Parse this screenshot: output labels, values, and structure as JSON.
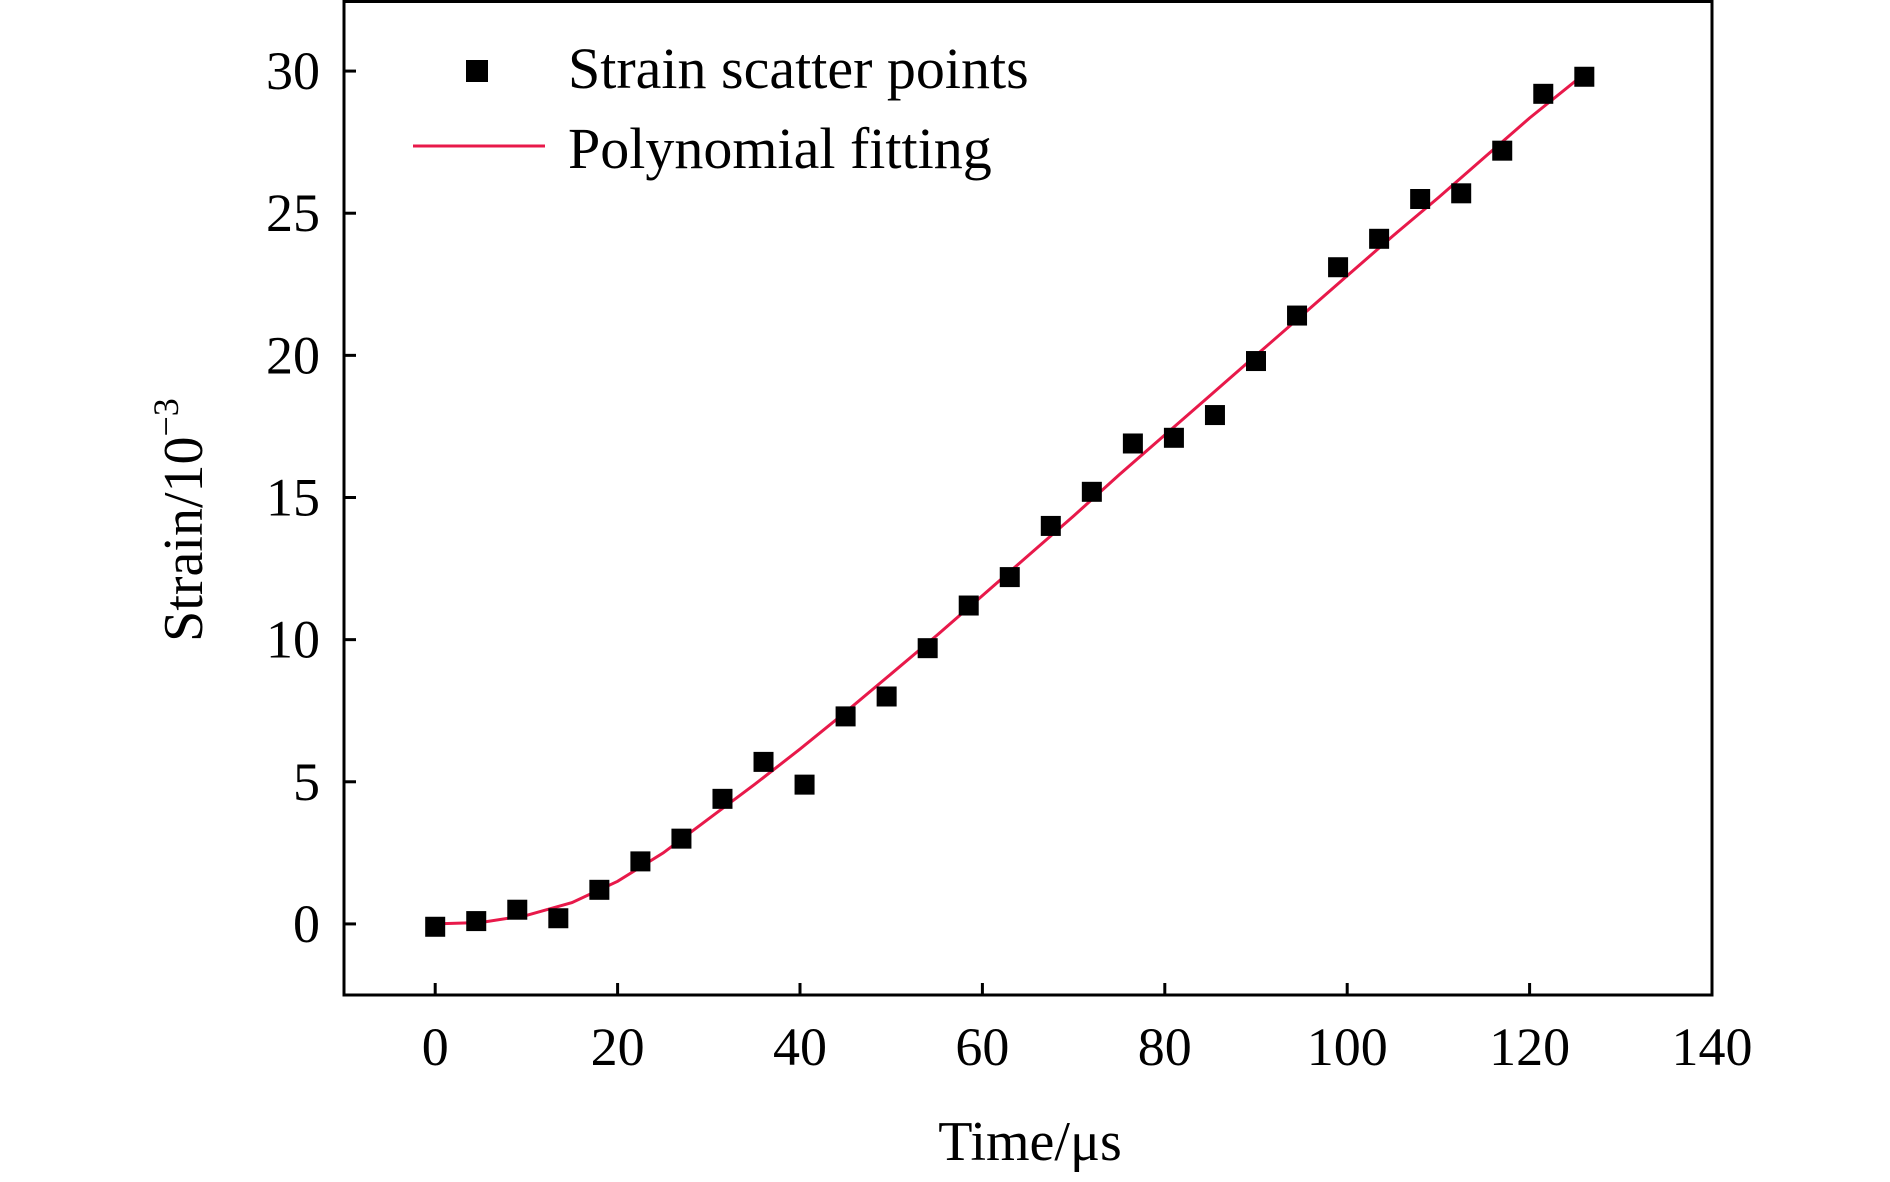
{
  "chart_data": {
    "type": "scatter",
    "title": "",
    "xlabel": "Time/μs",
    "ylabel_base": "Strain/10",
    "ylabel_exp": "−3",
    "xlim": [
      -10,
      140
    ],
    "ylim": [
      -2.5,
      32.5
    ],
    "xticks": [
      0,
      20,
      40,
      60,
      80,
      100,
      120,
      140
    ],
    "yticks": [
      0,
      5,
      10,
      15,
      20,
      25,
      30
    ],
    "grid": false,
    "legend_position": "top-left",
    "series": [
      {
        "name": "Strain scatter points",
        "kind": "scatter",
        "marker": "square",
        "color": "#000000",
        "x": [
          0,
          4.5,
          9,
          13.5,
          18,
          22.5,
          27,
          31.5,
          36,
          40.5,
          45,
          49.5,
          54,
          58.5,
          63,
          67.5,
          72,
          76.5,
          81,
          85.5,
          90,
          94.5,
          99,
          103.5,
          108,
          112.5,
          117,
          121.5,
          126
        ],
        "y": [
          -0.1,
          0.1,
          0.5,
          0.2,
          1.2,
          2.2,
          3.0,
          4.4,
          5.7,
          4.9,
          7.3,
          8.0,
          9.7,
          11.2,
          12.2,
          14.0,
          15.2,
          16.9,
          17.1,
          17.9,
          19.8,
          21.4,
          23.1,
          24.1,
          25.5,
          25.7,
          27.2,
          29.2,
          29.8
        ]
      },
      {
        "name": "Polynomial fitting",
        "kind": "line",
        "color": "#e8194a",
        "x": [
          0,
          5,
          10,
          15,
          20,
          25,
          30,
          35,
          40,
          45,
          50,
          55,
          60,
          65,
          70,
          75,
          80,
          85,
          90,
          95,
          100,
          105,
          110,
          115,
          120,
          126
        ],
        "y": [
          0,
          0.05,
          0.3,
          0.75,
          1.5,
          2.5,
          3.7,
          4.9,
          6.15,
          7.45,
          8.8,
          10.15,
          11.55,
          12.95,
          14.35,
          15.8,
          17.2,
          18.6,
          20.0,
          21.4,
          22.8,
          24.2,
          25.55,
          26.95,
          28.35,
          29.9
        ]
      }
    ]
  }
}
